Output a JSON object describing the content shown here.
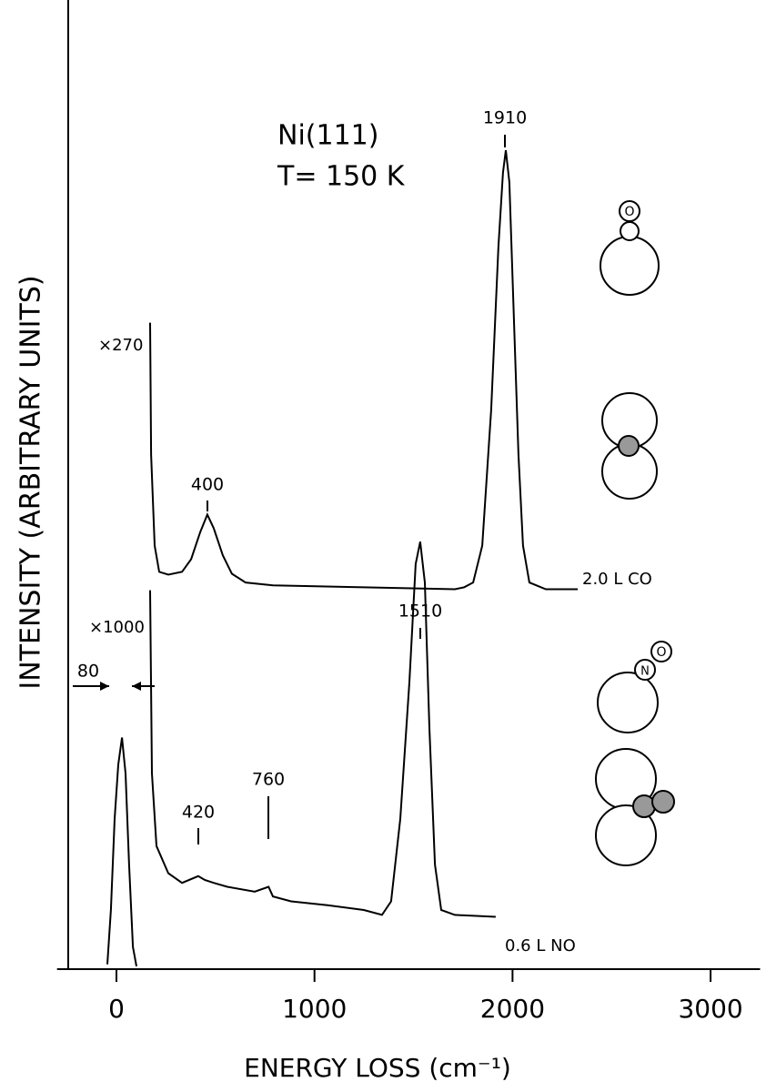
{
  "chart_data": {
    "type": "line",
    "title": "Ni(111)",
    "subtitle": "T= 150 K",
    "x_label": "ENERGY LOSS (cm⁻¹)",
    "y_label": "INTENSITY (ARBITRARY UNITS)",
    "xlim": [
      -300,
      3250
    ],
    "xticks": [
      0,
      1000,
      2000,
      3000
    ],
    "ylim": [
      0,
      100
    ],
    "series": [
      {
        "name": "2.0 L CO",
        "color": "#000000",
        "multiplier": "×270",
        "x": [
          170,
          175,
          193,
          216,
          262,
          331,
          377,
          423,
          459,
          491,
          537,
          583,
          652,
          790,
          1249,
          1709,
          1755,
          1801,
          1847,
          1892,
          1929,
          1952,
          1966,
          1984,
          2007,
          2030,
          2053,
          2085,
          2168,
          2329
        ],
        "values": [
          66.7,
          53.1,
          43.7,
          41.0,
          40.7,
          41.0,
          42.3,
          45.1,
          46.9,
          45.5,
          42.7,
          40.8,
          39.9,
          39.6,
          39.4,
          39.2,
          39.4,
          39.9,
          43.7,
          57.7,
          74.6,
          82.2,
          84.5,
          81.2,
          67.1,
          53.1,
          43.7,
          39.9,
          39.2,
          39.2
        ]
      },
      {
        "name": "0.6 L NO",
        "color": "#000000",
        "multiplier": "×1000",
        "x": [
          -46,
          -28,
          -9,
          9,
          28,
          46,
          64,
          83,
          101,
          null,
          170,
          179,
          202,
          262,
          331,
          413,
          446,
          491,
          560,
          698,
          768,
          790,
          882,
          1066,
          1249,
          1341,
          1387,
          1433,
          1479,
          1511,
          1534,
          1557,
          1580,
          1608,
          1640,
          1709,
          1915
        ],
        "values": [
          0.5,
          6.1,
          15.5,
          21.1,
          23.9,
          20.2,
          10.8,
          2.3,
          0.3,
          null,
          39.1,
          20.2,
          12.7,
          9.9,
          8.9,
          9.6,
          9.2,
          8.9,
          8.5,
          8.0,
          8.5,
          7.5,
          7.0,
          6.6,
          6.1,
          5.6,
          7.0,
          15.5,
          29.6,
          41.8,
          44.1,
          39.9,
          24.9,
          10.8,
          6.1,
          5.6,
          5.4
        ]
      }
    ],
    "annotations": [
      {
        "text": "1910"
      },
      {
        "text": "400"
      },
      {
        "text": "1510"
      },
      {
        "text": "420"
      },
      {
        "text": "760"
      },
      {
        "text": "80"
      }
    ]
  }
}
